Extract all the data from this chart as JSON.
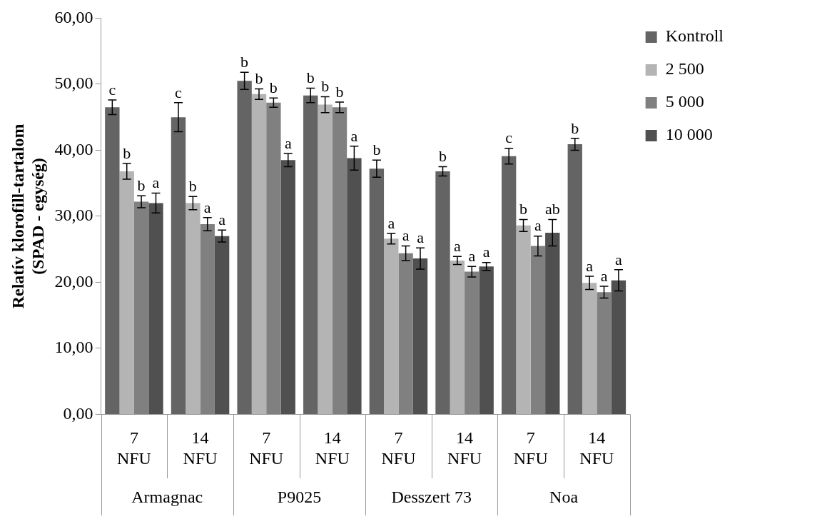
{
  "chart_data": {
    "type": "bar",
    "ylabel": "Relatív klorofill-tartalom\n(SPAD - egység)",
    "categories": [
      "7 NFU",
      "14 NFU",
      "7 NFU",
      "14 NFU",
      "7 NFU",
      "14 NFU",
      "7 NFU",
      "14 NFU"
    ],
    "annotations": [
      "Armagnac",
      "P9025",
      "Desszert 73",
      "Noa"
    ],
    "series": [
      {
        "name": "Kontroll",
        "color": "#646464",
        "values": [
          46.5,
          45.0,
          50.5,
          48.3,
          37.2,
          36.8,
          39.1,
          40.9
        ],
        "errors": [
          1.1,
          2.2,
          1.3,
          1.1,
          1.3,
          0.7,
          1.2,
          0.9
        ],
        "value_labels": [
          "c",
          "c",
          "b",
          "b",
          "b",
          "b",
          "c",
          "b"
        ]
      },
      {
        "name": "2 500",
        "color": "#b4b4b4",
        "values": [
          36.8,
          32.0,
          48.5,
          46.9,
          26.6,
          23.3,
          28.6,
          19.9
        ],
        "errors": [
          1.2,
          1.0,
          0.8,
          1.2,
          0.8,
          0.6,
          0.9,
          1.0
        ],
        "value_labels": [
          "b",
          "b",
          "b",
          "b",
          "a",
          "a",
          "b",
          "a"
        ]
      },
      {
        "name": "5 000",
        "color": "#808080",
        "values": [
          32.2,
          28.8,
          47.2,
          46.5,
          24.4,
          21.6,
          25.5,
          18.5
        ],
        "errors": [
          0.9,
          1.0,
          0.7,
          0.8,
          1.1,
          0.8,
          1.5,
          0.9
        ],
        "value_labels": [
          "b",
          "a",
          "b",
          "b",
          "a",
          "a",
          "a",
          "a"
        ]
      },
      {
        "name": "10 000",
        "color": "#505050",
        "values": [
          32.0,
          27.0,
          38.5,
          38.8,
          23.6,
          22.4,
          27.5,
          20.3
        ],
        "errors": [
          1.5,
          0.9,
          1.0,
          1.8,
          1.6,
          0.6,
          2.0,
          1.6
        ],
        "value_labels": [
          "a",
          "a",
          "a",
          "a",
          "a",
          "a",
          "ab",
          "a"
        ]
      }
    ],
    "ylim": [
      0,
      60
    ],
    "yticks": [
      {
        "value": 0,
        "label": "0,00"
      },
      {
        "value": 10,
        "label": "10,00"
      },
      {
        "value": 20,
        "label": "20,00"
      },
      {
        "value": 30,
        "label": "30,00"
      },
      {
        "value": 40,
        "label": "40,00"
      },
      {
        "value": 50,
        "label": "50,00"
      },
      {
        "value": 60,
        "label": "60,00"
      }
    ],
    "grid": false,
    "legend": "right"
  }
}
